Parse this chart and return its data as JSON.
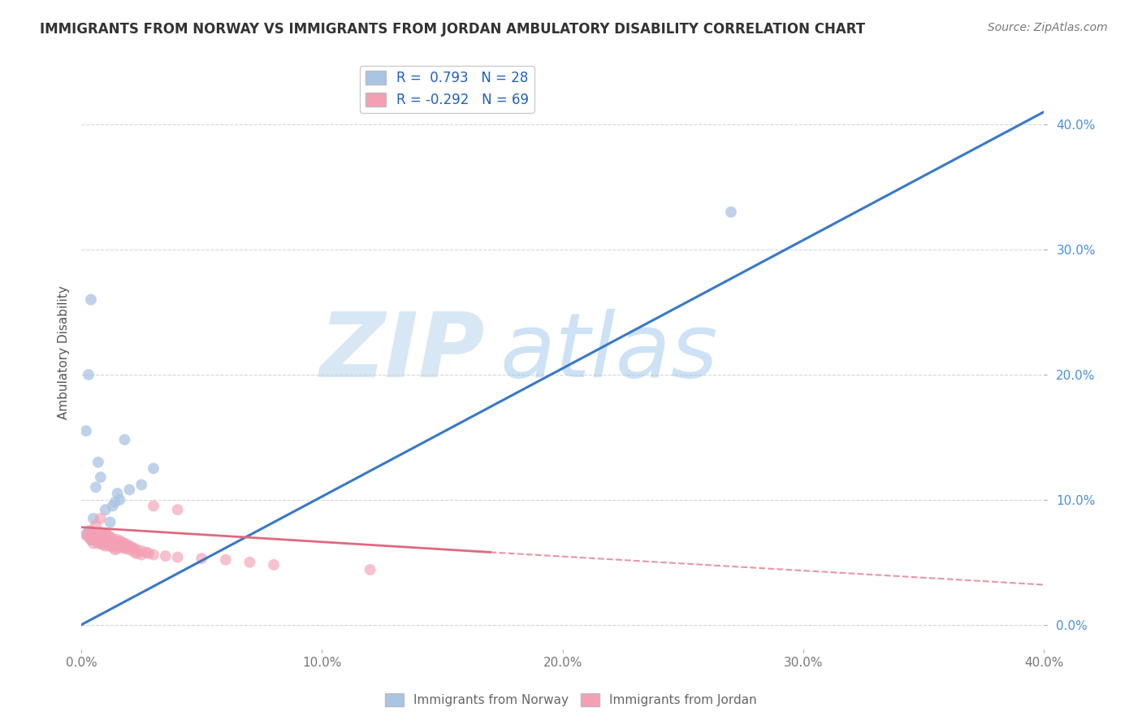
{
  "title": "IMMIGRANTS FROM NORWAY VS IMMIGRANTS FROM JORDAN AMBULATORY DISABILITY CORRELATION CHART",
  "source": "Source: ZipAtlas.com",
  "ylabel": "Ambulatory Disability",
  "xlim": [
    0.0,
    0.4
  ],
  "ylim": [
    -0.02,
    0.455
  ],
  "yticks": [
    0.0,
    0.1,
    0.2,
    0.3,
    0.4
  ],
  "xticks": [
    0.0,
    0.1,
    0.2,
    0.3,
    0.4
  ],
  "norway_R": 0.793,
  "norway_N": 28,
  "jordan_R": -0.292,
  "jordan_N": 69,
  "norway_color": "#aac4e4",
  "jordan_color": "#f4a0b4",
  "norway_line_color": "#3878c8",
  "jordan_line_color": "#e06880",
  "background_color": "#ffffff",
  "grid_color": "#cccccc",
  "watermark_zip": "ZIP",
  "watermark_atlas": "atlas",
  "norway_line": [
    0.0,
    0.0,
    0.4,
    0.41
  ],
  "jordan_line_solid": [
    0.0,
    0.078,
    0.17,
    0.058
  ],
  "jordan_line_dash": [
    0.17,
    0.058,
    0.4,
    0.032
  ],
  "norway_points": [
    [
      0.002,
      0.072
    ],
    [
      0.003,
      0.075
    ],
    [
      0.004,
      0.068
    ],
    [
      0.005,
      0.071
    ],
    [
      0.006,
      0.073
    ],
    [
      0.007,
      0.069
    ],
    [
      0.008,
      0.065
    ],
    [
      0.009,
      0.07
    ],
    [
      0.01,
      0.073
    ],
    [
      0.011,
      0.068
    ],
    [
      0.012,
      0.082
    ],
    [
      0.013,
      0.095
    ],
    [
      0.014,
      0.098
    ],
    [
      0.015,
      0.105
    ],
    [
      0.016,
      0.1
    ],
    [
      0.02,
      0.108
    ],
    [
      0.025,
      0.112
    ],
    [
      0.002,
      0.155
    ],
    [
      0.003,
      0.2
    ],
    [
      0.004,
      0.26
    ],
    [
      0.018,
      0.148
    ],
    [
      0.007,
      0.13
    ],
    [
      0.006,
      0.11
    ],
    [
      0.008,
      0.118
    ],
    [
      0.03,
      0.125
    ],
    [
      0.27,
      0.33
    ],
    [
      0.005,
      0.085
    ],
    [
      0.01,
      0.092
    ]
  ],
  "jordan_points": [
    [
      0.002,
      0.072
    ],
    [
      0.003,
      0.07
    ],
    [
      0.004,
      0.068
    ],
    [
      0.004,
      0.075
    ],
    [
      0.005,
      0.072
    ],
    [
      0.005,
      0.068
    ],
    [
      0.005,
      0.065
    ],
    [
      0.006,
      0.073
    ],
    [
      0.006,
      0.07
    ],
    [
      0.006,
      0.067
    ],
    [
      0.007,
      0.072
    ],
    [
      0.007,
      0.068
    ],
    [
      0.007,
      0.065
    ],
    [
      0.008,
      0.074
    ],
    [
      0.008,
      0.07
    ],
    [
      0.008,
      0.067
    ],
    [
      0.009,
      0.071
    ],
    [
      0.009,
      0.068
    ],
    [
      0.009,
      0.064
    ],
    [
      0.01,
      0.073
    ],
    [
      0.01,
      0.069
    ],
    [
      0.01,
      0.066
    ],
    [
      0.01,
      0.063
    ],
    [
      0.011,
      0.072
    ],
    [
      0.011,
      0.068
    ],
    [
      0.011,
      0.065
    ],
    [
      0.012,
      0.07
    ],
    [
      0.012,
      0.066
    ],
    [
      0.012,
      0.063
    ],
    [
      0.013,
      0.069
    ],
    [
      0.013,
      0.065
    ],
    [
      0.013,
      0.062
    ],
    [
      0.014,
      0.067
    ],
    [
      0.014,
      0.064
    ],
    [
      0.014,
      0.06
    ],
    [
      0.015,
      0.068
    ],
    [
      0.015,
      0.065
    ],
    [
      0.015,
      0.061
    ],
    [
      0.016,
      0.067
    ],
    [
      0.016,
      0.063
    ],
    [
      0.017,
      0.066
    ],
    [
      0.017,
      0.062
    ],
    [
      0.018,
      0.065
    ],
    [
      0.018,
      0.061
    ],
    [
      0.019,
      0.064
    ],
    [
      0.019,
      0.061
    ],
    [
      0.02,
      0.063
    ],
    [
      0.02,
      0.06
    ],
    [
      0.021,
      0.062
    ],
    [
      0.022,
      0.061
    ],
    [
      0.022,
      0.058
    ],
    [
      0.023,
      0.06
    ],
    [
      0.023,
      0.057
    ],
    [
      0.025,
      0.059
    ],
    [
      0.025,
      0.056
    ],
    [
      0.027,
      0.058
    ],
    [
      0.028,
      0.057
    ],
    [
      0.03,
      0.056
    ],
    [
      0.035,
      0.055
    ],
    [
      0.04,
      0.054
    ],
    [
      0.05,
      0.053
    ],
    [
      0.06,
      0.052
    ],
    [
      0.07,
      0.05
    ],
    [
      0.08,
      0.048
    ],
    [
      0.03,
      0.095
    ],
    [
      0.04,
      0.092
    ],
    [
      0.006,
      0.08
    ],
    [
      0.008,
      0.085
    ],
    [
      0.12,
      0.044
    ]
  ]
}
